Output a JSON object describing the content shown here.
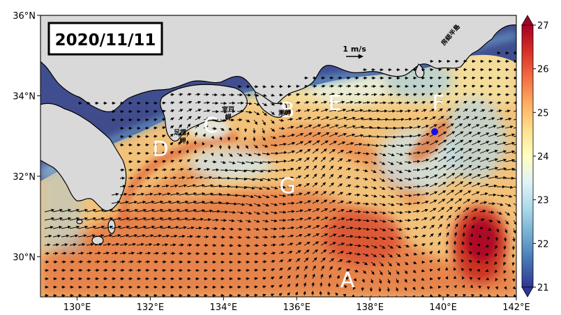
{
  "map": {
    "date_label": "2020/11/11",
    "lon_ticks": [
      "130°E",
      "132°E",
      "134°E",
      "136°E",
      "138°E",
      "140°E",
      "142°E"
    ],
    "lat_ticks": [
      "36°N",
      "34°N",
      "32°N",
      "30°N"
    ],
    "scale": {
      "label": "1 m/s"
    },
    "place_labels": [
      {
        "id": "muroto",
        "lines": [
          "室戸",
          "岬"
        ]
      },
      {
        "id": "ashizuri",
        "lines": [
          "足摺",
          "岬"
        ]
      },
      {
        "id": "shionomisaki",
        "lines": [
          "潮岬"
        ]
      },
      {
        "id": "boso",
        "lines": [
          "房総半島"
        ]
      }
    ],
    "region_letters": [
      "A",
      "B",
      "C",
      "D",
      "E",
      "F",
      "G"
    ],
    "marker": {
      "color": "#1010ee"
    }
  },
  "colorbar": {
    "ticks": [
      "27",
      "26",
      "25",
      "24",
      "23",
      "22",
      "21"
    ],
    "colors": [
      "#313695",
      "#4575b4",
      "#74add1",
      "#abd9e9",
      "#e0f3f8",
      "#ffffbf",
      "#fee090",
      "#fdae61",
      "#f46d43",
      "#d73027",
      "#a50026"
    ]
  },
  "colors": {
    "land": "#d9d9d9",
    "coast_stroke": "#000000",
    "frame": "#000000"
  }
}
